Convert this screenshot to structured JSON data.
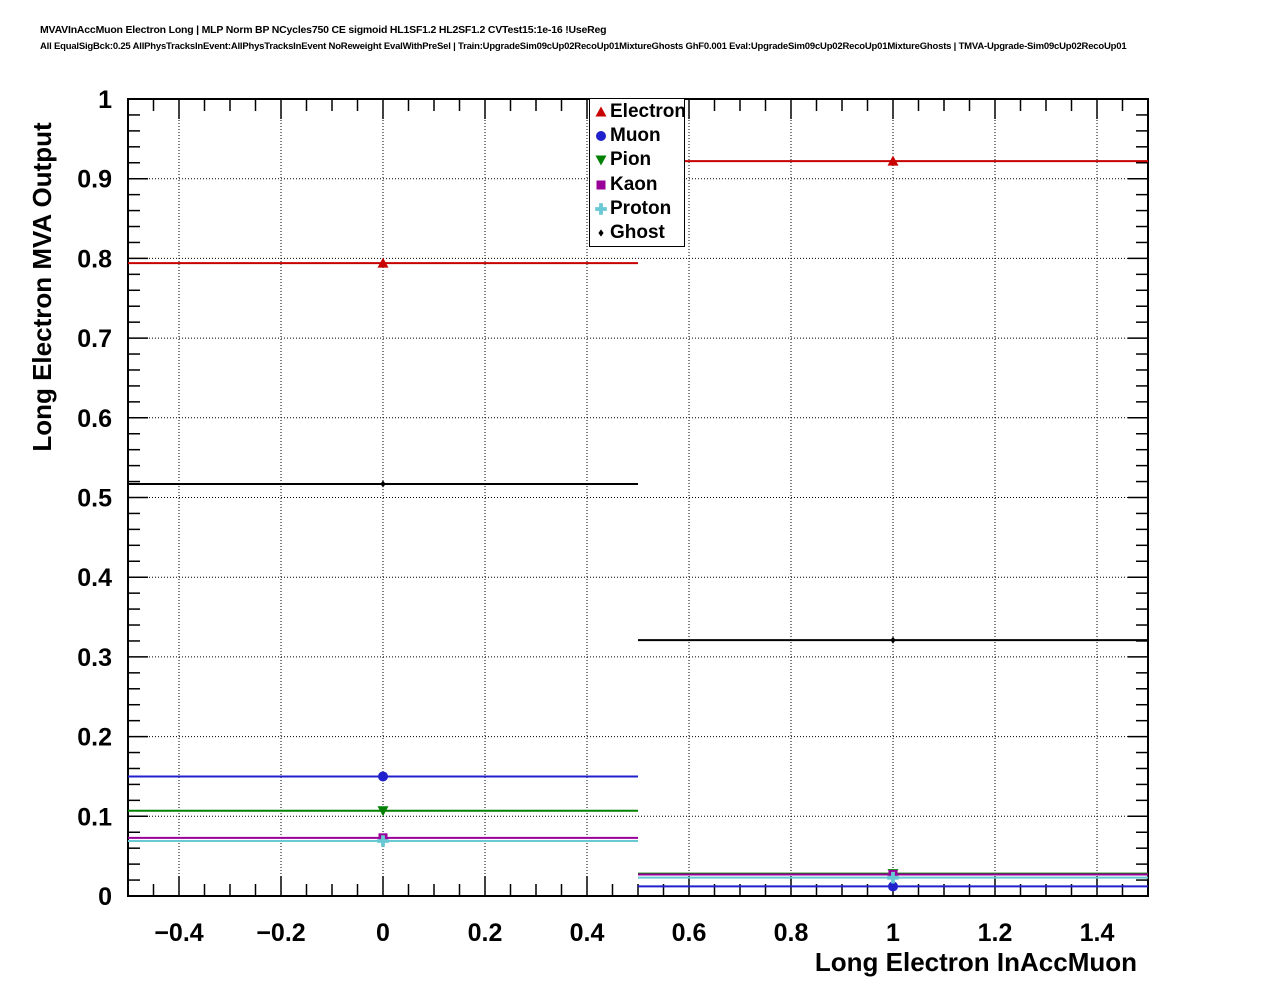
{
  "header": {
    "title_line1": "MVAVInAccMuon Electron Long | MLP Norm BP NCycles750 CE sigmoid HL1SF1.2 HL2SF1.2 CVTest15:1e-16 !UseReg",
    "title_line2": "All EqualSigBck:0.25 AllPhysTracksInEvent:AllPhysTracksInEvent NoReweight EvalWithPreSel | Train:UpgradeSim09cUp02RecoUp01MixtureGhosts GhF0.001 Eval:UpgradeSim09cUp02RecoUp01MixtureGhosts | TMVA-Upgrade-Sim09cUp02RecoUp01"
  },
  "chart_data": {
    "type": "line",
    "title": "",
    "xlabel": "Long Electron InAccMuon",
    "ylabel": "Long Electron MVA Output",
    "xlim": [
      -0.5,
      1.5
    ],
    "ylim": [
      0,
      1
    ],
    "grid": "dotted",
    "legend_position": "top-center",
    "x": [
      0,
      1
    ],
    "bin_half_width": 0.5,
    "x_major_ticks": [
      -0.4,
      -0.2,
      0,
      0.2,
      0.4,
      0.6,
      0.8,
      1.0,
      1.2,
      1.4
    ],
    "x_tick_labels": [
      "−0.4",
      "−0.2",
      "0",
      "0.2",
      "0.4",
      "0.6",
      "0.8",
      "1",
      "1.2",
      "1.4"
    ],
    "x_minor_step": 0.05,
    "y_major_ticks": [
      0,
      0.1,
      0.2,
      0.3,
      0.4,
      0.5,
      0.6,
      0.7,
      0.8,
      0.9,
      1
    ],
    "y_tick_labels": [
      "0",
      "0.1",
      "0.2",
      "0.3",
      "0.4",
      "0.5",
      "0.6",
      "0.7",
      "0.8",
      "0.9",
      "1"
    ],
    "y_minor_step": 0.02,
    "series": [
      {
        "name": "Electron",
        "color": "#c80000",
        "marker": "triangle-up",
        "values": [
          0.794,
          0.922
        ]
      },
      {
        "name": "Muon",
        "color": "#2020cc",
        "marker": "circle",
        "values": [
          0.15,
          0.012
        ]
      },
      {
        "name": "Pion",
        "color": "#008000",
        "marker": "triangle-down",
        "values": [
          0.107,
          0.028
        ]
      },
      {
        "name": "Kaon",
        "color": "#990099",
        "marker": "square",
        "values": [
          0.073,
          0.027
        ]
      },
      {
        "name": "Proton",
        "color": "#68c8d4",
        "marker": "cross",
        "values": [
          0.069,
          0.023
        ]
      },
      {
        "name": "Ghost",
        "color": "#000000",
        "marker": "diamond",
        "values": [
          0.517,
          0.321
        ]
      }
    ]
  }
}
